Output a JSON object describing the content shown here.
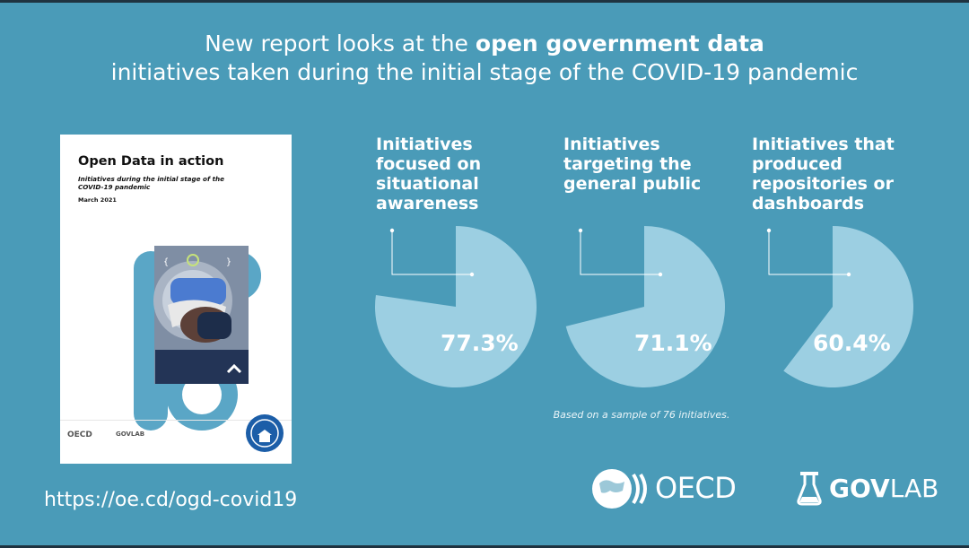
{
  "headline": {
    "line1_plain": "New report looks at the ",
    "line1_bold": "open government data",
    "line2": "initiatives taken during the initial stage of the COVID-19 pandemic"
  },
  "report_cover": {
    "title": "Open Data in action",
    "subtitle": "Initiatives during the initial stage of the COVID-19 pandemic",
    "date": "March 2021",
    "oecd_label": "OECD",
    "govlab_label": "GOVLAB"
  },
  "chart_data": {
    "type": "pie",
    "charts": [
      {
        "title": "Initiatives focused on situational awareness",
        "value": 77.3,
        "label": "77.3%"
      },
      {
        "title": "Initiatives targeting the general public",
        "value": 71.1,
        "label": "71.1%"
      },
      {
        "title": "Initiatives that produced repositories or dashboards",
        "value": 60.4,
        "label": "60.4%"
      }
    ],
    "note": "Based on a sample of 76 initiatives.",
    "colors": {
      "slice": "#9ccfe2",
      "leader": "#ffffff"
    }
  },
  "footer": {
    "url": "https://oe.cd/ogd-covid19",
    "oecd_logo_text": "OECD",
    "govlab_logo_bold": "GOV",
    "govlab_logo_rest": "LAB"
  }
}
